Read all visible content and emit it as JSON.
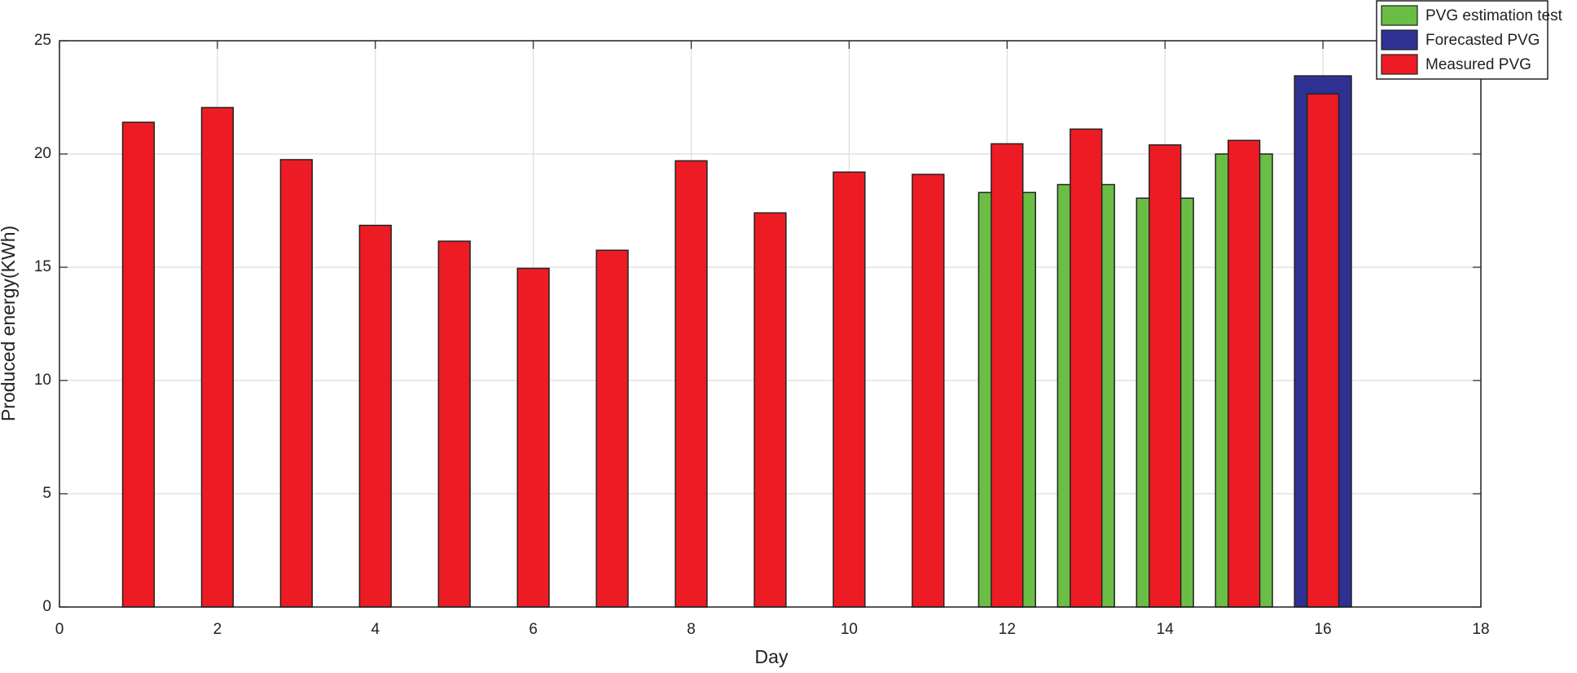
{
  "chart_data": {
    "type": "bar",
    "x": [
      1,
      2,
      3,
      4,
      5,
      6,
      7,
      8,
      9,
      10,
      11,
      12,
      13,
      14,
      15,
      16
    ],
    "series": [
      {
        "name": "PVG estimation test",
        "color": "#6abd45",
        "values": [
          null,
          null,
          null,
          null,
          null,
          null,
          null,
          null,
          null,
          null,
          null,
          18.3,
          18.65,
          18.05,
          20.0,
          null
        ]
      },
      {
        "name": "Forecasted PVG",
        "color": "#2e3192",
        "values": [
          null,
          null,
          null,
          null,
          null,
          null,
          null,
          null,
          null,
          null,
          null,
          null,
          null,
          null,
          null,
          23.45
        ]
      },
      {
        "name": "Measured PVG",
        "color": "#ed1c24",
        "values": [
          21.4,
          22.05,
          19.75,
          16.85,
          16.15,
          14.95,
          15.75,
          19.7,
          17.4,
          19.2,
          19.1,
          20.45,
          21.1,
          20.4,
          20.6,
          22.65
        ]
      }
    ],
    "xlabel": "Day",
    "ylabel": "Produced energy(KWh)",
    "xlim": [
      0,
      18
    ],
    "xticks": [
      0,
      2,
      4,
      6,
      8,
      10,
      12,
      14,
      16,
      18
    ],
    "ylim": [
      0,
      25
    ],
    "yticks": [
      0,
      5,
      10,
      15,
      20,
      25
    ],
    "grid": true,
    "legend": "top-right"
  }
}
